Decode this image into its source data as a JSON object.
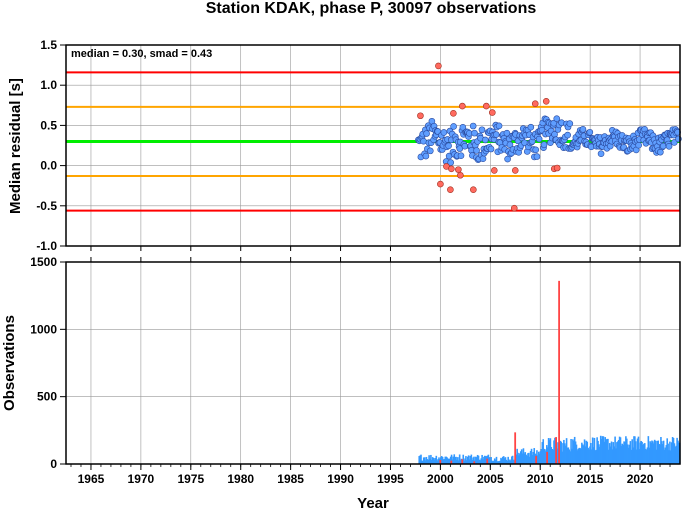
{
  "title": "Station KDAK, phase P, 30097 observations",
  "colors": {
    "limit_outer": "#ff0000",
    "limit_inner": "#ffa500",
    "median_line": "#00ee00",
    "point_normal": "#5f9eff",
    "point_outlier": "#ff6a5f",
    "bar_normal": "#3399ff",
    "bar_outlier": "#ff4444",
    "grid": "#999999"
  },
  "chart_data": [
    {
      "type": "scatter",
      "ylabel": "Median residual [s]",
      "annotation": "median = 0.30, smad = 0.43",
      "xlim": [
        1962.5,
        2024.0
      ],
      "ylim": [
        -1.0,
        1.5
      ],
      "yticks": [
        "1.5",
        "1.0",
        "0.5",
        "0.0",
        "-0.5",
        "-1.0"
      ],
      "grid": true,
      "hlines": [
        {
          "y": 1.16,
          "role": "outer"
        },
        {
          "y": 0.73,
          "role": "inner"
        },
        {
          "y": 0.3,
          "role": "median"
        },
        {
          "y": -0.13,
          "role": "inner"
        },
        {
          "y": -0.56,
          "role": "outer"
        }
      ],
      "outliers": [
        [
          1998.0,
          0.62
        ],
        [
          1999.8,
          1.24
        ],
        [
          2000.0,
          -0.23
        ],
        [
          2000.6,
          -0.01
        ],
        [
          2001.0,
          -0.3
        ],
        [
          2001.3,
          0.65
        ],
        [
          2001.8,
          -0.05
        ],
        [
          2002.0,
          -0.12
        ],
        [
          2002.2,
          0.74
        ],
        [
          2003.3,
          -0.3
        ],
        [
          2004.6,
          0.74
        ],
        [
          2005.2,
          0.66
        ],
        [
          2005.4,
          -0.06
        ],
        [
          2007.4,
          -0.53
        ],
        [
          2007.5,
          -0.06
        ],
        [
          2009.5,
          0.77
        ],
        [
          2010.6,
          0.8
        ],
        [
          2011.4,
          -0.04
        ],
        [
          2011.7,
          -0.03
        ],
        [
          2001.1,
          -0.04
        ]
      ]
    },
    {
      "type": "bar",
      "ylabel": "Observations",
      "xlabel": "Year",
      "xlim": [
        1962.5,
        2024.0
      ],
      "ylim": [
        0,
        1500
      ],
      "yticks": [
        "1500",
        "1000",
        "500",
        "0"
      ],
      "xticks": [
        "1965",
        "1970",
        "1975",
        "1980",
        "1985",
        "1990",
        "1995",
        "2000",
        "2005",
        "2010",
        "2015",
        "2020"
      ],
      "grid": true,
      "outlier_bars": [
        [
          1999.9,
          30
        ],
        [
          2001.0,
          25
        ],
        [
          2002.1,
          35
        ],
        [
          2003.3,
          20
        ],
        [
          2004.6,
          40
        ],
        [
          2007.4,
          235
        ],
        [
          2009.5,
          60
        ],
        [
          2010.6,
          90
        ],
        [
          2011.8,
          1360
        ],
        [
          2011.5,
          200
        ]
      ]
    }
  ]
}
